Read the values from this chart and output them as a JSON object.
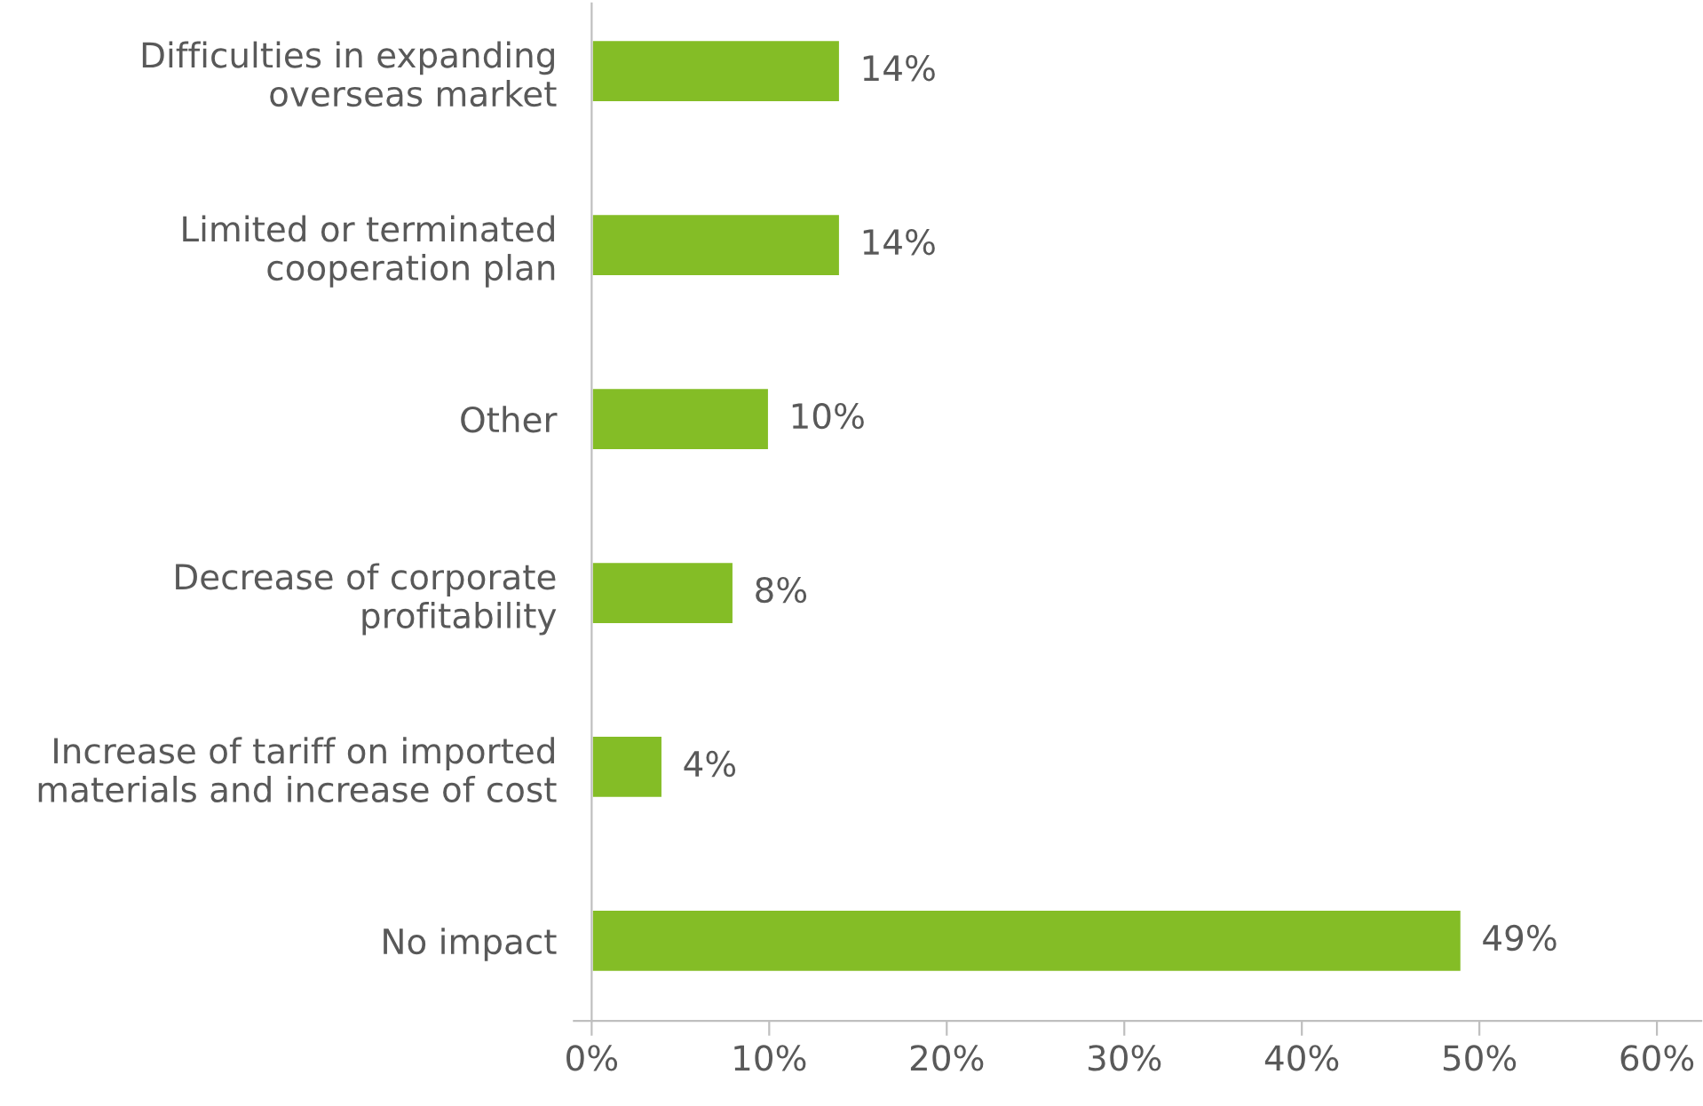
{
  "chart_data": {
    "type": "bar",
    "orientation": "horizontal",
    "categories": [
      "Difficulties in expanding\noverseas market",
      "Limited or terminated\ncooperation plan",
      "Other",
      "Decrease of corporate\nprofitability",
      "Increase of tariff on imported\nmaterials and increase of cost",
      "No impact"
    ],
    "values": [
      14,
      14,
      10,
      8,
      4,
      49
    ],
    "value_labels": [
      "14%",
      "14%",
      "10%",
      "8%",
      "4%",
      "49%"
    ],
    "color": "#84bd26",
    "xlim": [
      -1,
      62.5
    ],
    "xticks": [
      {
        "value": 0,
        "label": "0%"
      },
      {
        "value": 10,
        "label": "10%"
      },
      {
        "value": 20,
        "label": "20%"
      },
      {
        "value": 30,
        "label": "30%"
      },
      {
        "value": 40,
        "label": "40%"
      },
      {
        "value": 50,
        "label": "50%"
      },
      {
        "value": 60,
        "label": "60%"
      }
    ],
    "grid": false,
    "legend": false
  }
}
